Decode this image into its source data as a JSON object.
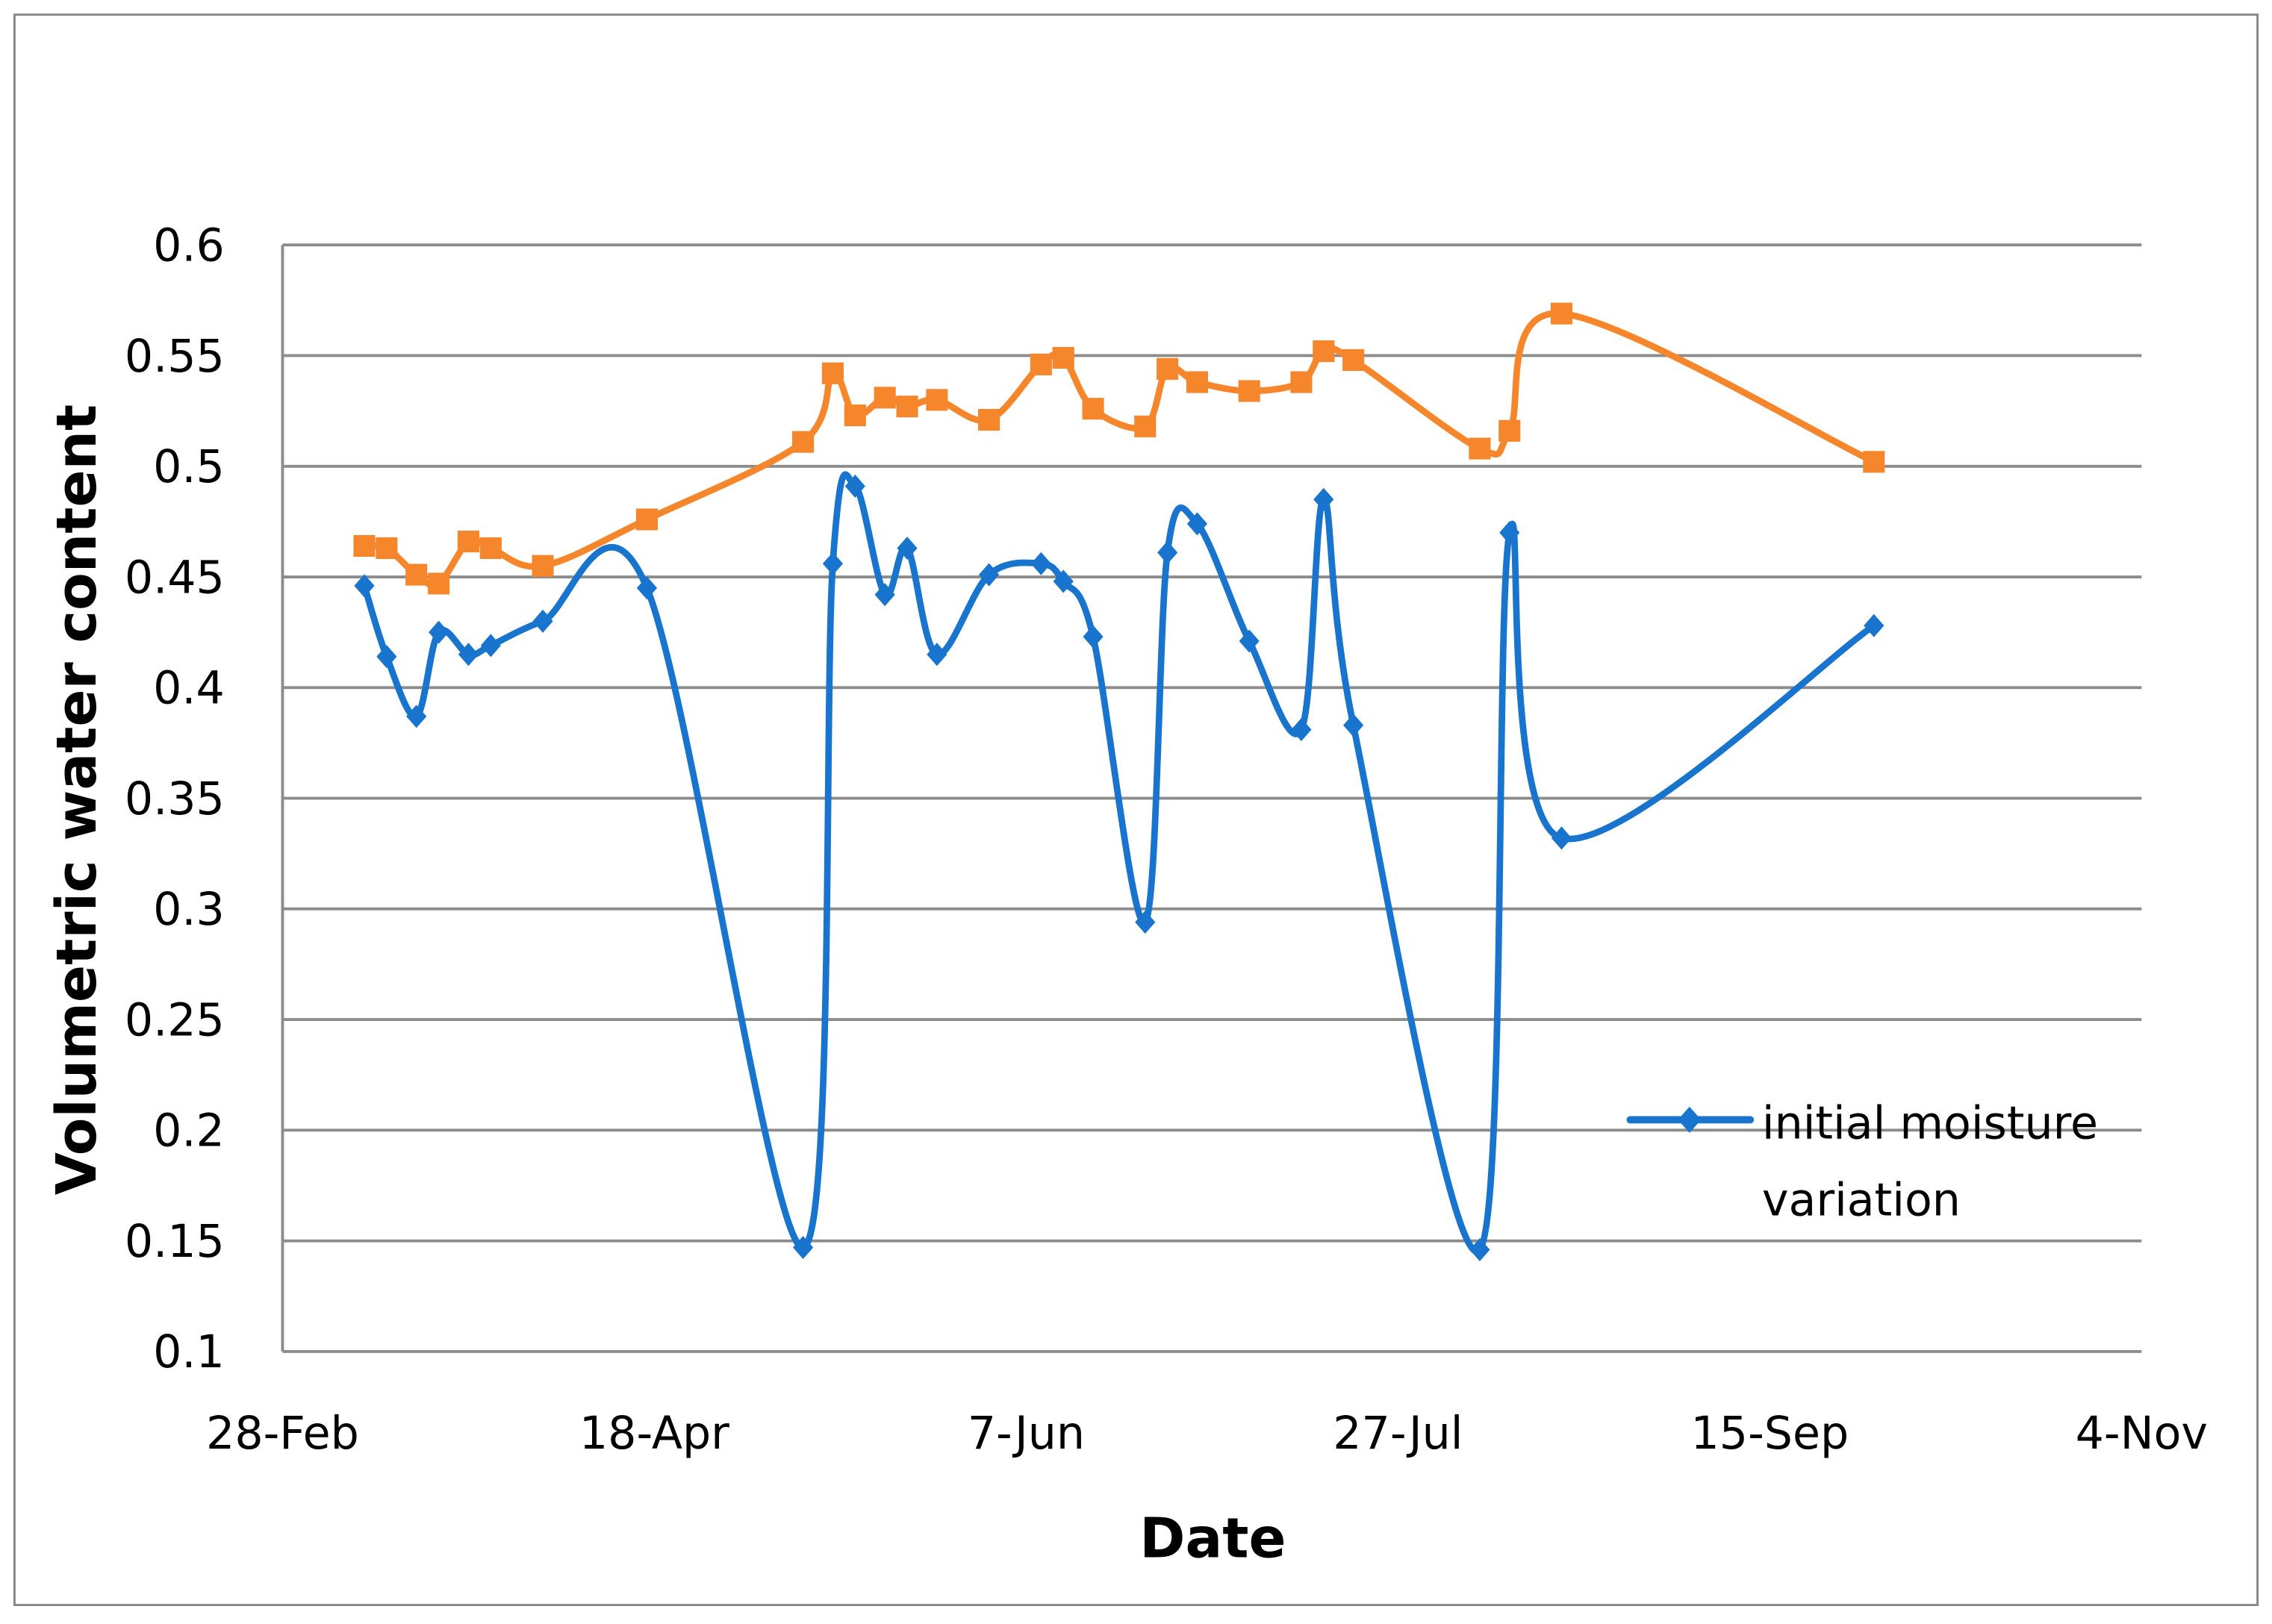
{
  "chart_data": {
    "type": "line",
    "title": "",
    "xlabel": "Date",
    "ylabel": "Volumetric water content",
    "x_ticks": [
      "28-Feb",
      "18-Apr",
      "7-Jun",
      "27-Jul",
      "15-Sep",
      "4-Nov"
    ],
    "y_ticks": [
      "0.1",
      "0.15",
      "0.2",
      "0.25",
      "0.3",
      "0.35",
      "0.4",
      "0.45",
      "0.5",
      "0.55",
      "0.6"
    ],
    "xlim": [
      "28-Feb",
      "4-Nov"
    ],
    "ylim": [
      0.1,
      0.6
    ],
    "grid": "horizontal",
    "legend_placement": "bottom-right",
    "smoothed": true,
    "x": [
      "10-Mar",
      "13-Mar",
      "17-Mar",
      "20-Mar",
      "24-Mar",
      "27-Mar",
      "3-Apr",
      "17-Apr",
      "8-May",
      "12-May",
      "15-May",
      "19-May",
      "22-May",
      "26-May",
      "2-Jun",
      "9-Jun",
      "12-Jun",
      "16-Jun",
      "23-Jun",
      "26-Jun",
      "30-Jun",
      "7-Jul",
      "14-Jul",
      "17-Jul",
      "21-Jul",
      "7-Aug",
      "11-Aug",
      "18-Aug",
      "29-Sep"
    ],
    "series": [
      {
        "name": "initial moisture variation",
        "color": "#1874CD",
        "marker": "diamond",
        "values": [
          0.446,
          0.414,
          0.387,
          0.425,
          0.415,
          0.419,
          0.43,
          0.445,
          0.147,
          0.456,
          0.491,
          0.442,
          0.463,
          0.415,
          0.451,
          0.456,
          0.448,
          0.423,
          0.294,
          0.461,
          0.474,
          0.421,
          0.381,
          0.485,
          0.383,
          0.146,
          0.47,
          0.332,
          0.428
        ]
      },
      {
        "color": "#F6862B",
        "marker": "square",
        "values": [
          0.464,
          0.463,
          0.451,
          0.447,
          0.466,
          0.463,
          0.455,
          0.476,
          0.511,
          0.542,
          0.523,
          0.531,
          0.527,
          0.53,
          0.521,
          0.546,
          0.549,
          0.526,
          0.518,
          0.544,
          0.538,
          0.534,
          0.538,
          0.552,
          0.548,
          0.508,
          0.516,
          0.569,
          0.502
        ]
      }
    ]
  }
}
